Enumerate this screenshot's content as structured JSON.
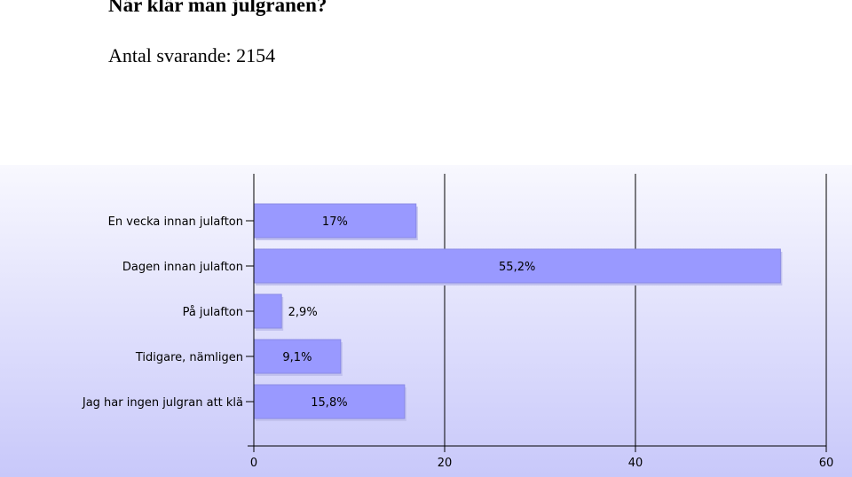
{
  "header": {
    "title": "När klär man julgranen?",
    "respondents": "Antal svarande:  2154"
  },
  "chart_data": {
    "type": "bar",
    "orientation": "horizontal",
    "title": "",
    "xlabel": "",
    "ylabel": "",
    "categories": [
      "En vecka innan julafton",
      "Dagen innan julafton",
      "På julafton",
      "Tidigare, nämligen",
      "Jag har ingen julgran att klä"
    ],
    "values": [
      17,
      55.2,
      2.9,
      9.1,
      15.8
    ],
    "value_labels": [
      "17%",
      "55,2%",
      "2,9%",
      "9,1%",
      "15,8%"
    ],
    "xlim": [
      0,
      60
    ],
    "xticks": [
      0,
      20,
      40,
      60
    ],
    "grid": true,
    "bar_color": "#9999ff",
    "bar_shadow_color": "#c2c2ee",
    "plot_bg_top": "#f8f8fe",
    "plot_bg_bottom": "#c8c8fa"
  }
}
